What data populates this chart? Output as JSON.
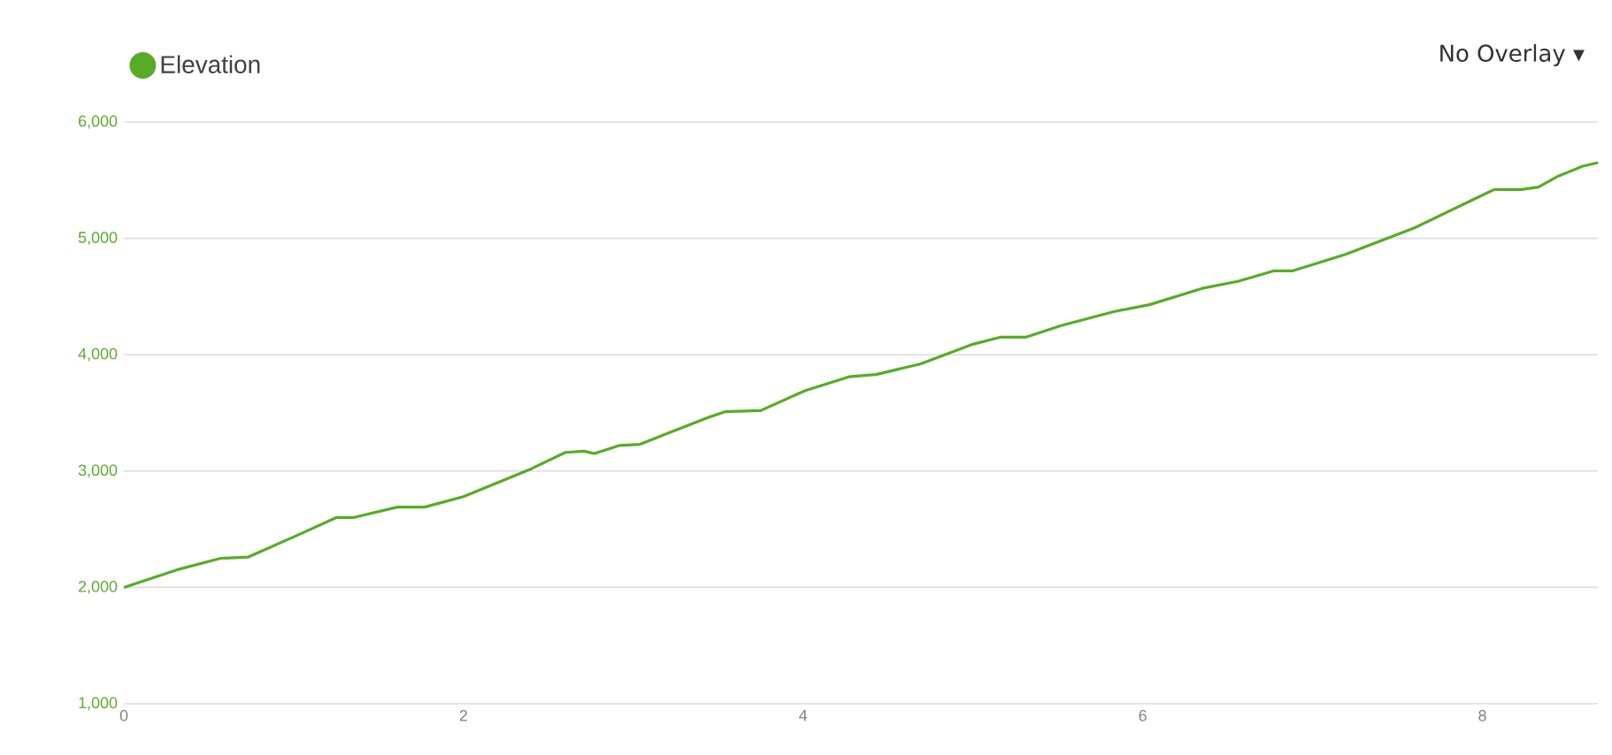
{
  "chart_data": {
    "type": "line",
    "annotations": [
      "No Overlay ▾"
    ],
    "legend": "top left",
    "grid": "y",
    "marker": "none",
    "line_style": "solid",
    "xlim": [
      0,
      8.68
    ],
    "ylim": [
      1000,
      6000
    ],
    "xticks": [
      0,
      2,
      4,
      6,
      8
    ],
    "yticks": [
      {
        "value": 1000,
        "label": "1,000"
      },
      {
        "value": 2000,
        "label": "2,000"
      },
      {
        "value": 3000,
        "label": "3,000"
      },
      {
        "value": 4000,
        "label": "4,000"
      },
      {
        "value": 5000,
        "label": "5,000"
      },
      {
        "value": 6000,
        "label": "6,000"
      }
    ],
    "series": [
      {
        "name": "Elevation",
        "color": "#58ab27",
        "x": [
          0,
          0.31,
          0.57,
          0.73,
          1.04,
          1.25,
          1.35,
          1.61,
          1.77,
          2.0,
          2.4,
          2.6,
          2.71,
          2.77,
          2.92,
          3.04,
          3.23,
          3.44,
          3.54,
          3.75,
          4.01,
          4.27,
          4.43,
          4.69,
          5.0,
          5.16,
          5.31,
          5.52,
          5.83,
          6.04,
          6.35,
          6.56,
          6.77,
          6.88,
          7.19,
          7.6,
          7.97,
          8.07,
          8.23,
          8.33,
          8.44,
          8.59,
          8.68
        ],
        "values": [
          2000,
          2150,
          2250,
          2260,
          2460,
          2600,
          2600,
          2690,
          2690,
          2780,
          3020,
          3160,
          3170,
          3150,
          3220,
          3230,
          3340,
          3460,
          3510,
          3520,
          3690,
          3810,
          3830,
          3920,
          4090,
          4150,
          4150,
          4250,
          4370,
          4430,
          4570,
          4630,
          4720,
          4720,
          4860,
          5090,
          5350,
          5420,
          5420,
          5440,
          5530,
          5620,
          5650
        ]
      }
    ]
  }
}
